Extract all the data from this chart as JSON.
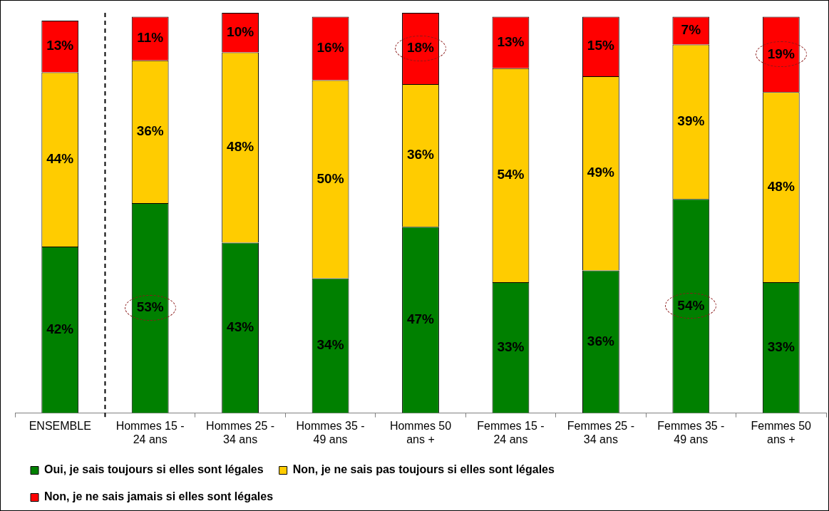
{
  "chart_data": {
    "type": "bar",
    "stacked": true,
    "categories": [
      "ENSEMBLE",
      "Hommes 15 - 24 ans",
      "Hommes 25 - 34 ans",
      "Hommes 35 - 49 ans",
      "Hommes 50 ans +",
      "Femmes 15 - 24 ans",
      "Femmes 25 - 34 ans",
      "Femmes 35 - 49 ans",
      "Femmes 50 ans +"
    ],
    "series": [
      {
        "name": "Oui, je sais toujours si elles sont légales",
        "color": "#008000",
        "values": [
          42,
          53,
          43,
          34,
          47,
          33,
          36,
          54,
          33
        ],
        "value_labels": [
          "42%",
          "53%",
          "43%",
          "34%",
          "47%",
          "33%",
          "36%",
          "54%",
          "33%"
        ]
      },
      {
        "name": "Non, je ne sais pas toujours si elles sont légales",
        "color": "#ffcc00",
        "values": [
          44,
          36,
          48,
          50,
          36,
          54,
          49,
          39,
          48
        ],
        "value_labels": [
          "44%",
          "36%",
          "48%",
          "50%",
          "36%",
          "54%",
          "49%",
          "39%",
          "48%"
        ]
      },
      {
        "name": "Non, je ne sais jamais si elles sont légales",
        "color": "#ff0000",
        "values": [
          13,
          11,
          10,
          16,
          18,
          13,
          15,
          7,
          19
        ],
        "value_labels": [
          "13%",
          "11%",
          "10%",
          "16%",
          "18%",
          "13%",
          "15%",
          "7%",
          "19%"
        ]
      }
    ],
    "grid": false,
    "legend": "bottom",
    "tick_labels": "x"
  }
}
